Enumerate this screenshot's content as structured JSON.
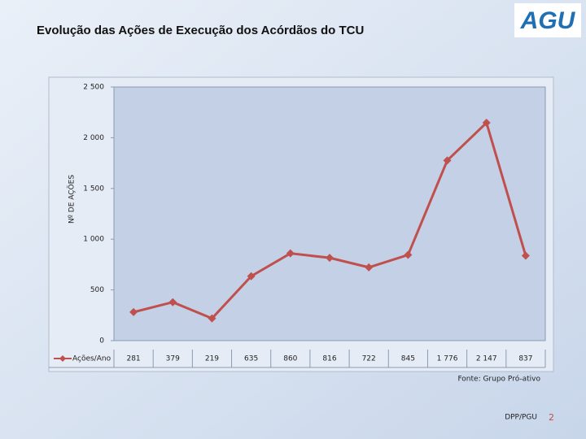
{
  "slide": {
    "title": "Evolução das Ações de Execução dos Acórdãos do TCU",
    "logo": "AGU",
    "footer": "DPP/PGU",
    "page_number": "2"
  },
  "chart_data": {
    "type": "line",
    "y_label": "Nº DE AÇÕES",
    "source": "Fonte: Grupo Pró-ativo",
    "categories": [
      null,
      null,
      null,
      null,
      null,
      null,
      null,
      null,
      null,
      null,
      null
    ],
    "series": [
      {
        "name": "Ações/Ano",
        "color": "#c0504d",
        "values": [
          281,
          379,
          219,
          635,
          860,
          816,
          722,
          845,
          1776,
          2147,
          837
        ],
        "value_labels": [
          "281",
          "379",
          "219",
          "635",
          "860",
          "816",
          "722",
          "845",
          "1 776",
          "2 147",
          "837"
        ]
      }
    ],
    "ylim": [
      0,
      2500
    ],
    "yticks": [
      0,
      500,
      {
        "value": 1000,
        "label": "1 000"
      },
      {
        "value": 1500,
        "label": "1 500"
      },
      {
        "value": 2000,
        "label": "2 000"
      },
      {
        "value": 2500,
        "label": "2 500"
      }
    ],
    "grid": false
  }
}
